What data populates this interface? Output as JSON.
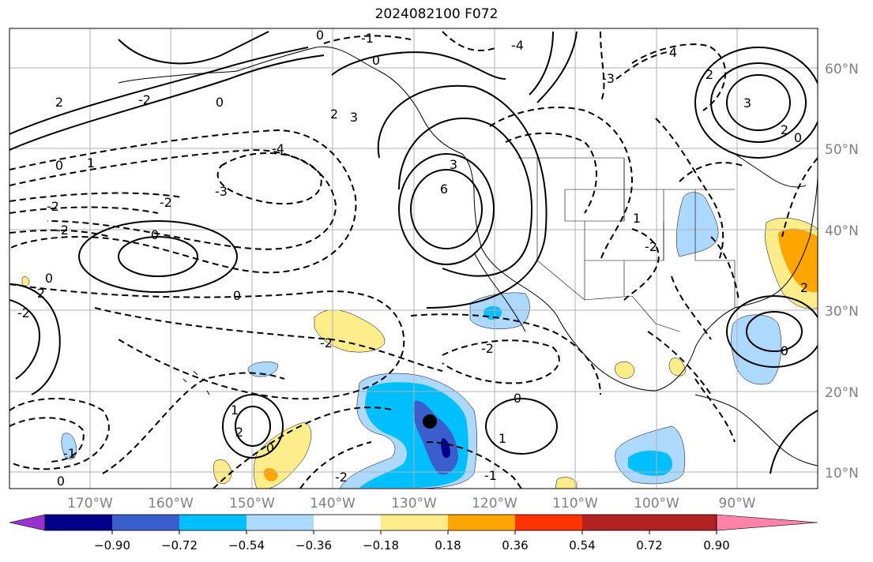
{
  "title": "2024082100 F072",
  "map": {
    "lat_labels": [
      "60°N",
      "50°N",
      "40°N",
      "30°N",
      "20°N",
      "10°N"
    ],
    "lon_labels": [
      "170°W",
      "160°W",
      "150°W",
      "140°W",
      "130°W",
      "120°W",
      "110°W",
      "100°W",
      "90°W"
    ],
    "contour_labels": [
      "0",
      "-1",
      "0",
      "-4",
      "4",
      "2",
      "-3",
      "-2",
      "2",
      "0",
      "3",
      "2",
      "2",
      "3",
      "-4",
      "-3",
      "-2",
      "6",
      "-2",
      "-2",
      "0",
      "1",
      "0",
      "0",
      "-2",
      "-2",
      "0",
      "1",
      "2",
      "0",
      "-1",
      "0",
      "1",
      "0",
      "-2",
      "2",
      "-2",
      "1",
      "-1",
      "-2",
      "0",
      "3",
      "2",
      "0"
    ],
    "marker": "filled-circle"
  },
  "colorbar": {
    "colors": [
      "#9932cc",
      "#00008b",
      "#3a5fcd",
      "#00bfff",
      "#add8ff",
      "#ffffff",
      "#ffec8b",
      "#ffa500",
      "#ff3300",
      "#b22222",
      "#ff82ab"
    ],
    "ticks": [
      "−0.90",
      "−0.72",
      "−0.54",
      "−0.36",
      "−0.18",
      "0.18",
      "0.36",
      "0.54",
      "0.72",
      "0.90"
    ]
  }
}
